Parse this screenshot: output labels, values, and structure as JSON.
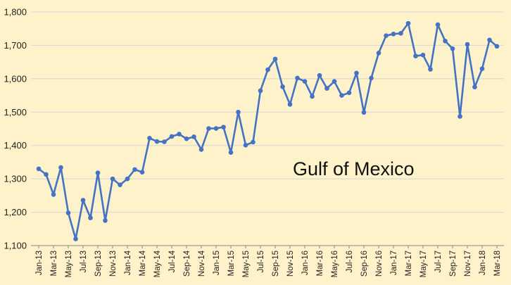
{
  "chart_data": {
    "type": "line",
    "title": "",
    "xlabel": "",
    "ylabel": "",
    "annotation": "Gulf of Mexico",
    "ylim": [
      1100,
      1800
    ],
    "yticks": [
      1100,
      1200,
      1300,
      1400,
      1500,
      1600,
      1700,
      1800
    ],
    "ytick_labels": [
      "1,100",
      "1,200",
      "1,300",
      "1,400",
      "1,500",
      "1,600",
      "1,700",
      "1,800"
    ],
    "xtick_labels": [
      "Jan-13",
      "Mar-13",
      "May-13",
      "Jul-13",
      "Sep-13",
      "Nov-13",
      "Jan-14",
      "Mar-14",
      "May-14",
      "Jul-14",
      "Sep-14",
      "Nov-14",
      "Jan-15",
      "Mar-15",
      "May-15",
      "Jul-15",
      "Sep-15",
      "Nov-15",
      "Jan-16",
      "Mar-16",
      "May-16",
      "Jul-16",
      "Sep-16",
      "Nov-16",
      "Jan-17",
      "Mar-17",
      "May-17",
      "Jul-17",
      "Sep-17",
      "Nov-17",
      "Jan-18",
      "Mar-18"
    ],
    "grid": true,
    "legend": "none",
    "colors": {
      "line": "#4472c4",
      "background": "#fdf2c9"
    },
    "x": [
      "Jan-13",
      "Feb-13",
      "Mar-13",
      "Apr-13",
      "May-13",
      "Jun-13",
      "Jul-13",
      "Aug-13",
      "Sep-13",
      "Oct-13",
      "Nov-13",
      "Dec-13",
      "Jan-14",
      "Feb-14",
      "Mar-14",
      "Apr-14",
      "May-14",
      "Jun-14",
      "Jul-14",
      "Aug-14",
      "Sep-14",
      "Oct-14",
      "Nov-14",
      "Dec-14",
      "Jan-15",
      "Feb-15",
      "Mar-15",
      "Apr-15",
      "May-15",
      "Jun-15",
      "Jul-15",
      "Aug-15",
      "Sep-15",
      "Oct-15",
      "Nov-15",
      "Dec-15",
      "Jan-16",
      "Feb-16",
      "Mar-16",
      "Apr-16",
      "May-16",
      "Jun-16",
      "Jul-16",
      "Aug-16",
      "Sep-16",
      "Oct-16",
      "Nov-16",
      "Dec-16",
      "Jan-17",
      "Feb-17",
      "Mar-17",
      "Apr-17",
      "May-17",
      "Jun-17",
      "Jul-17",
      "Aug-17",
      "Sep-17",
      "Oct-17",
      "Nov-17",
      "Dec-17",
      "Jan-18",
      "Feb-18",
      "Mar-18"
    ],
    "series": [
      {
        "values": [
          1330,
          1313,
          1253,
          1334,
          1198,
          1120,
          1236,
          1183,
          1318,
          1175,
          1300,
          1282,
          1300,
          1328,
          1320,
          1422,
          1412,
          1411,
          1427,
          1434,
          1420,
          1426,
          1388,
          1451,
          1451,
          1455,
          1379,
          1500,
          1401,
          1410,
          1564,
          1627,
          1659,
          1576,
          1523,
          1602,
          1592,
          1547,
          1610,
          1571,
          1592,
          1550,
          1558,
          1617,
          1499,
          1602,
          1677,
          1729,
          1734,
          1736,
          1766,
          1668,
          1671,
          1628,
          1762,
          1713,
          1690,
          1487,
          1703,
          1575,
          1630,
          1716,
          1697
        ]
      }
    ]
  }
}
